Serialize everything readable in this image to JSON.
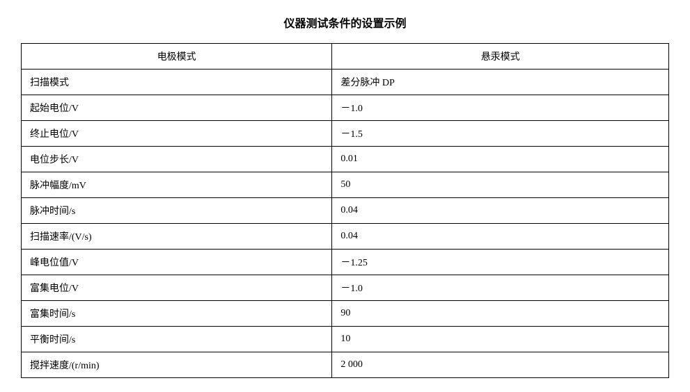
{
  "title": "仪器测试条件的设置示例",
  "table": {
    "type": "table",
    "background_color": "#ffffff",
    "border_color": "#000000",
    "header_fontsize": 14,
    "cell_fontsize": 14,
    "columns": [
      {
        "label": "电极模式",
        "align": "center",
        "width_pct": 48
      },
      {
        "label": "悬汞模式",
        "align": "center",
        "width_pct": 52
      }
    ],
    "rows": [
      {
        "param": "扫描模式",
        "value": "差分脉冲 DP"
      },
      {
        "param": "起始电位/V",
        "value": "－1.0"
      },
      {
        "param": "终止电位/V",
        "value": "－1.5"
      },
      {
        "param": "电位步长/V",
        "value": "0.01"
      },
      {
        "param": "脉冲幅度/mV",
        "value": "50"
      },
      {
        "param": "脉冲时间/s",
        "value": "0.04"
      },
      {
        "param": "扫描速率/(V/s)",
        "value": "0.04"
      },
      {
        "param": "峰电位值/V",
        "value": "－1.25"
      },
      {
        "param": "富集电位/V",
        "value": "－1.0"
      },
      {
        "param": "富集时间/s",
        "value": "90"
      },
      {
        "param": "平衡时间/s",
        "value": "10"
      },
      {
        "param": "搅拌速度/(r/min)",
        "value": "2 000"
      }
    ]
  }
}
